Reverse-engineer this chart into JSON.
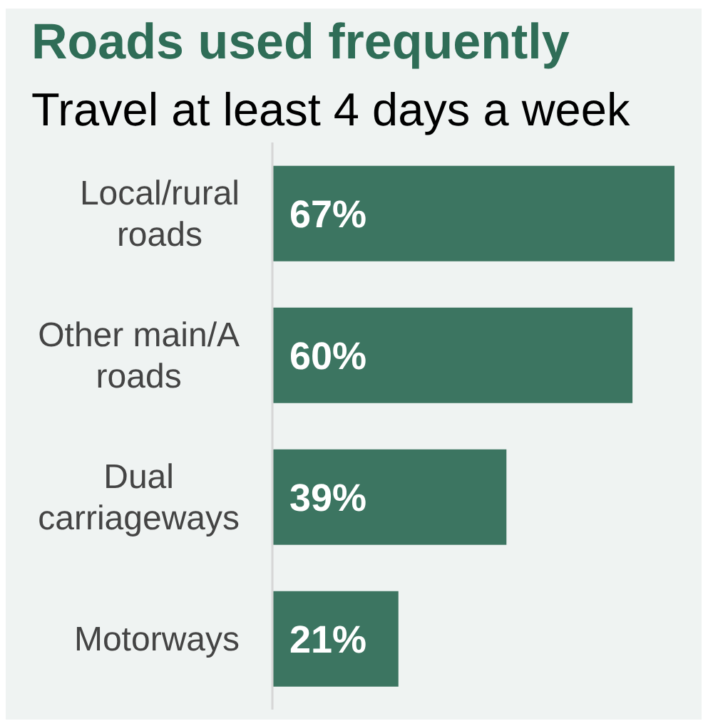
{
  "chart_data": {
    "type": "bar",
    "title": "Roads used frequently",
    "subtitle": "Travel at least 4 days a week",
    "orientation": "horizontal",
    "categories": [
      "Local/rural roads",
      "Other main/A roads",
      "Dual carriageways",
      "Motorways"
    ],
    "values": [
      67,
      60,
      39,
      21
    ],
    "value_labels": [
      "67%",
      "60%",
      "39%",
      "21%"
    ],
    "color": "#3c7561",
    "tick_labels": "y"
  }
}
